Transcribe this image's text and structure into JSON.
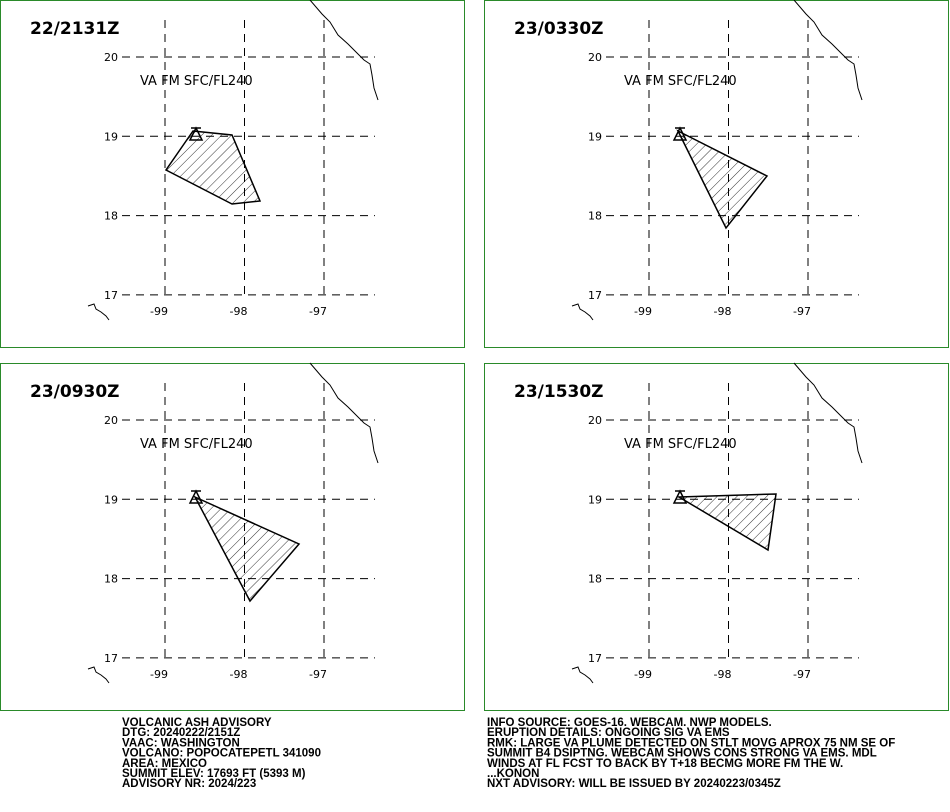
{
  "panels": [
    {
      "time": "22/2131Z",
      "label": "VA FM SFC/FL240"
    },
    {
      "time": "23/0330Z",
      "label": "VA FM SFC/FL240"
    },
    {
      "time": "23/0930Z",
      "label": "VA FM SFC/FL240"
    },
    {
      "time": "23/1530Z",
      "label": "VA FM SFC/FL240"
    }
  ],
  "lat_ticks": [
    20,
    19,
    18,
    17
  ],
  "lon_ticks": [
    -99,
    -98,
    -97
  ],
  "advisory_left": [
    "VOLCANIC ASH ADVISORY",
    "DTG: 20240222/2151Z",
    "VAAC: WASHINGTON",
    "VOLCANO: POPOCATEPETL 341090",
    "AREA: MEXICO",
    "SUMMIT ELEV: 17693 FT (5393 M)",
    "ADVISORY NR: 2024/223"
  ],
  "advisory_right": [
    "INFO SOURCE: GOES-16. WEBCAM. NWP MODELS.",
    "ERUPTION DETAILS: ONGOING SIG VA EMS",
    "RMK: LARGE VA PLUME DETECTED ON STLT MOVG APROX 75 NM SE OF",
    "SUMMIT B4 DSIPTNG. WEBCAM SHOWS CONS STRONG VA EMS. MDL",
    "WINDS AT FL FCST TO BACK BY T+18 BECMG MORE FM THE W.",
    "...KONON",
    "NXT ADVISORY: WILL BE ISSUED BY 20240223/0345Z"
  ]
}
